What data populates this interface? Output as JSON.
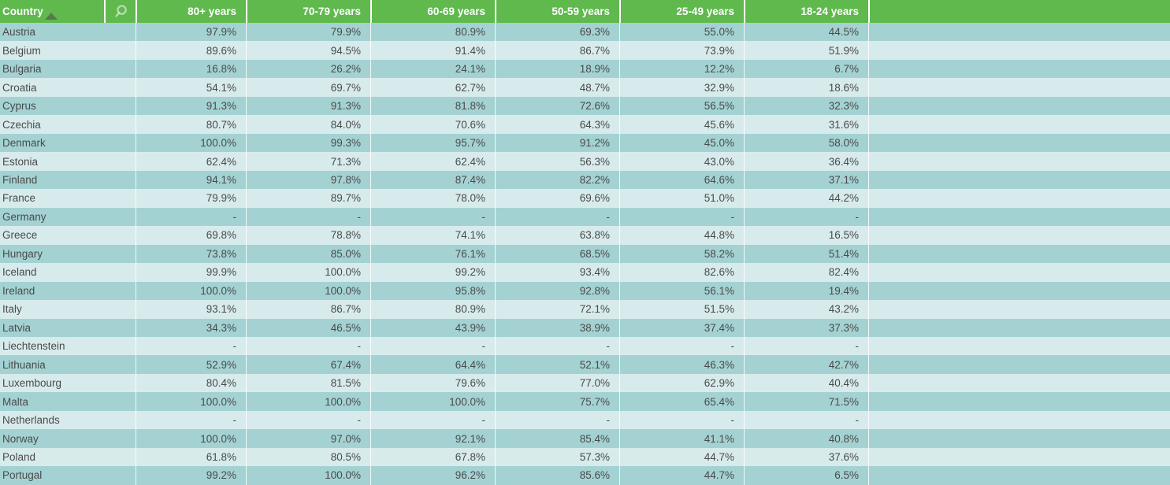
{
  "table": {
    "country_header": "Country",
    "sort": {
      "column": "Country",
      "direction": "ascending"
    },
    "columns": [
      "80+ years",
      "70-79 years",
      "60-69 years",
      "50-59 years",
      "25-49 years",
      "18-24 years"
    ],
    "rows": [
      {
        "country": "Austria",
        "values": [
          "97.9%",
          "79.9%",
          "80.9%",
          "69.3%",
          "55.0%",
          "44.5%"
        ]
      },
      {
        "country": "Belgium",
        "values": [
          "89.6%",
          "94.5%",
          "91.4%",
          "86.7%",
          "73.9%",
          "51.9%"
        ]
      },
      {
        "country": "Bulgaria",
        "values": [
          "16.8%",
          "26.2%",
          "24.1%",
          "18.9%",
          "12.2%",
          "6.7%"
        ]
      },
      {
        "country": "Croatia",
        "values": [
          "54.1%",
          "69.7%",
          "62.7%",
          "48.7%",
          "32.9%",
          "18.6%"
        ]
      },
      {
        "country": "Cyprus",
        "values": [
          "91.3%",
          "91.3%",
          "81.8%",
          "72.6%",
          "56.5%",
          "32.3%"
        ]
      },
      {
        "country": "Czechia",
        "values": [
          "80.7%",
          "84.0%",
          "70.6%",
          "64.3%",
          "45.6%",
          "31.6%"
        ]
      },
      {
        "country": "Denmark",
        "values": [
          "100.0%",
          "99.3%",
          "95.7%",
          "91.2%",
          "45.0%",
          "58.0%"
        ]
      },
      {
        "country": "Estonia",
        "values": [
          "62.4%",
          "71.3%",
          "62.4%",
          "56.3%",
          "43.0%",
          "36.4%"
        ]
      },
      {
        "country": "Finland",
        "values": [
          "94.1%",
          "97.8%",
          "87.4%",
          "82.2%",
          "64.6%",
          "37.1%"
        ]
      },
      {
        "country": "France",
        "values": [
          "79.9%",
          "89.7%",
          "78.0%",
          "69.6%",
          "51.0%",
          "44.2%"
        ]
      },
      {
        "country": "Germany",
        "values": [
          "-",
          "-",
          "-",
          "-",
          "-",
          "-"
        ]
      },
      {
        "country": "Greece",
        "values": [
          "69.8%",
          "78.8%",
          "74.1%",
          "63.8%",
          "44.8%",
          "16.5%"
        ]
      },
      {
        "country": "Hungary",
        "values": [
          "73.8%",
          "85.0%",
          "76.1%",
          "68.5%",
          "58.2%",
          "51.4%"
        ]
      },
      {
        "country": "Iceland",
        "values": [
          "99.9%",
          "100.0%",
          "99.2%",
          "93.4%",
          "82.6%",
          "82.4%"
        ]
      },
      {
        "country": "Ireland",
        "values": [
          "100.0%",
          "100.0%",
          "95.8%",
          "92.8%",
          "56.1%",
          "19.4%"
        ]
      },
      {
        "country": "Italy",
        "values": [
          "93.1%",
          "86.7%",
          "80.9%",
          "72.1%",
          "51.5%",
          "43.2%"
        ]
      },
      {
        "country": "Latvia",
        "values": [
          "34.3%",
          "46.5%",
          "43.9%",
          "38.9%",
          "37.4%",
          "37.3%"
        ]
      },
      {
        "country": "Liechtenstein",
        "values": [
          "-",
          "-",
          "-",
          "-",
          "-",
          "-"
        ]
      },
      {
        "country": "Lithuania",
        "values": [
          "52.9%",
          "67.4%",
          "64.4%",
          "52.1%",
          "46.3%",
          "42.7%"
        ]
      },
      {
        "country": "Luxembourg",
        "values": [
          "80.4%",
          "81.5%",
          "79.6%",
          "77.0%",
          "62.9%",
          "40.4%"
        ]
      },
      {
        "country": "Malta",
        "values": [
          "100.0%",
          "100.0%",
          "100.0%",
          "75.7%",
          "65.4%",
          "71.5%"
        ]
      },
      {
        "country": "Netherlands",
        "values": [
          "-",
          "-",
          "-",
          "-",
          "-",
          "-"
        ]
      },
      {
        "country": "Norway",
        "values": [
          "100.0%",
          "97.0%",
          "92.1%",
          "85.4%",
          "41.1%",
          "40.8%"
        ]
      },
      {
        "country": "Poland",
        "values": [
          "61.8%",
          "80.5%",
          "67.8%",
          "57.3%",
          "44.7%",
          "37.6%"
        ]
      },
      {
        "country": "Portugal",
        "values": [
          "99.2%",
          "100.0%",
          "96.2%",
          "85.6%",
          "44.7%",
          "6.5%"
        ]
      }
    ],
    "icons": {
      "search": "search-icon",
      "sort": "sort-ascending-icon"
    },
    "colors": {
      "header_bg": "#5fb94d",
      "header_text": "#ffffff",
      "row_odd_bg": "#a4d2d3",
      "row_even_bg": "#d8ebec",
      "cell_text": "#4a4a4a"
    }
  }
}
